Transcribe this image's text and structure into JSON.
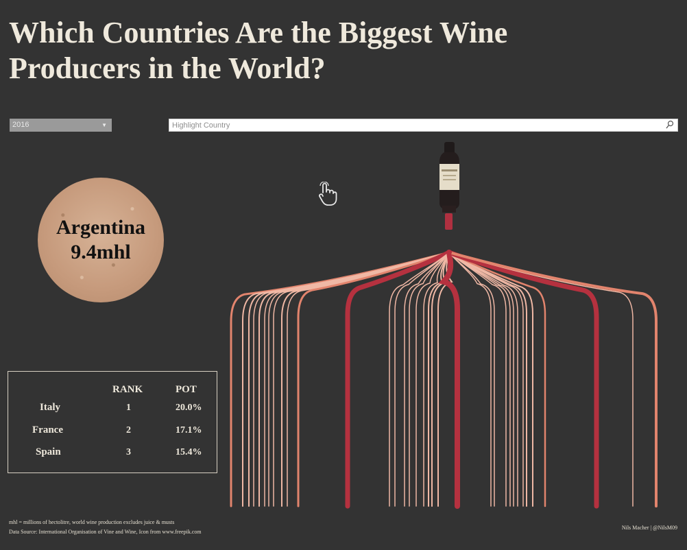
{
  "title": "Which Countries Are the Biggest Wine Producers in the World?",
  "year_filter": {
    "selected": "2016"
  },
  "search": {
    "placeholder": "Highlight Country"
  },
  "selection": {
    "country": "Argentina",
    "value": "9.4mhl"
  },
  "ranking": {
    "headers": {
      "rank": "RANK",
      "pot": "POT"
    },
    "rows": [
      {
        "country": "Italy",
        "rank": "1",
        "pot": "20.0%"
      },
      {
        "country": "France",
        "rank": "2",
        "pot": "17.1%"
      },
      {
        "country": "Spain",
        "rank": "3",
        "pot": "15.4%"
      }
    ]
  },
  "footer": {
    "note": "mhl =  millions of hectolitre, world wine production excludes juice & musts",
    "source": "Data Source: International Organisation of Vine and Wine, Icon from www.freepik.com",
    "credit": "Nils Macher | @NilsM09"
  },
  "colors": {
    "background": "#333333",
    "top3": "#b5313f",
    "mid": "#e2846d",
    "light": "#f0b8a5",
    "text": "#efe9dc"
  },
  "icons": [
    "chevron-down-icon",
    "search-icon",
    "hand-pointer-icon",
    "wine-bottle-icon"
  ]
}
